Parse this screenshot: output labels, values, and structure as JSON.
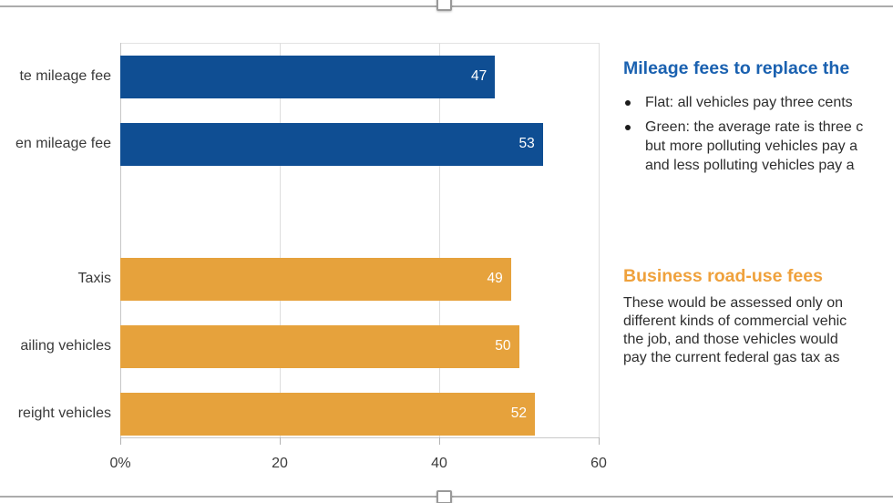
{
  "selection_frame": {
    "border_color": "#acacac",
    "handle_fill": "#ffffff",
    "handle_border": "#999999"
  },
  "chart_data": {
    "type": "bar",
    "orientation": "horizontal",
    "title": "",
    "xlabel": "",
    "ylabel": "",
    "unit": "%",
    "xlim": [
      0,
      67
    ],
    "grid": true,
    "value_label_position": "inside-end",
    "value_label_color": "#ffffff",
    "x_axis": {
      "tick_labels": [
        "0%",
        "20",
        "40",
        "60"
      ],
      "tick_values": [
        0,
        20,
        40,
        60
      ]
    },
    "series": [
      {
        "name": "Mileage fees",
        "color": "#0f4e93",
        "categories": [
          "te mileage fee",
          "en mileage fee"
        ],
        "values": [
          47,
          53
        ]
      },
      {
        "name": "Business road-use fees",
        "color": "#e6a23c",
        "categories": [
          "Taxis",
          "ailing vehicles",
          "reight vehicles"
        ],
        "values": [
          49,
          50,
          52
        ]
      }
    ],
    "bars": [
      {
        "label": "te mileage fee",
        "value": 47,
        "row": 0,
        "color": "#0f4e93"
      },
      {
        "label": "en mileage fee",
        "value": 53,
        "row": 1,
        "color": "#0f4e93"
      },
      {
        "label": "Taxis",
        "value": 49,
        "row": 3,
        "color": "#e6a23c"
      },
      {
        "label": "ailing vehicles",
        "value": 50,
        "row": 4,
        "color": "#e6a23c"
      },
      {
        "label": "reight vehicles",
        "value": 52,
        "row": 5,
        "color": "#e6a23c"
      }
    ]
  },
  "right_panel": {
    "mileage_section": {
      "heading": "Mileage fees to replace the",
      "heading_color": "#1a61b0",
      "bullet_1": {
        "lines": [
          "Flat: all vehicles pay three cents"
        ]
      },
      "bullet_2": {
        "lines": [
          "Green: the average rate is three c",
          "but more polluting vehicles pay a",
          "and less polluting vehicles pay a"
        ]
      }
    },
    "business_section": {
      "heading": "Business road-use fees",
      "heading_color": "#efa13c",
      "body_lines": [
        "These would be assessed only on",
        "different kinds of commercial vehic",
        "the job, and those vehicles would",
        "pay the current federal gas tax as"
      ]
    }
  }
}
